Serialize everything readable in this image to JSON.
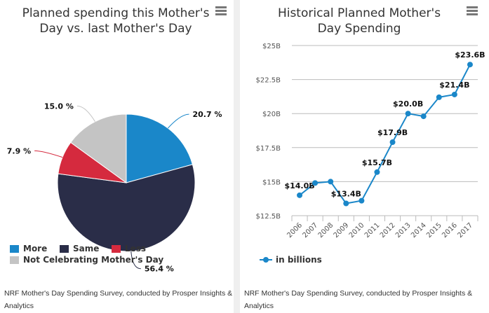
{
  "chart_data": [
    {
      "type": "pie",
      "title": "Planned spending this Mother's Day vs. last Mother's Day",
      "slices": [
        {
          "name": "More",
          "value": 20.7,
          "label": "20.7 %",
          "color": "#1a87c9"
        },
        {
          "name": "Same",
          "value": 56.4,
          "label": "56.4 %",
          "color": "#2a2d48"
        },
        {
          "name": "Less",
          "value": 7.9,
          "label": "7.9 %",
          "color": "#d52a3e"
        },
        {
          "name": "Not Celebrating Mother's Day",
          "value": 15.0,
          "label": "15.0 %",
          "color": "#c4c4c4"
        }
      ],
      "legend_position": "bottom-left",
      "source": "NRF Mother's Day Spending Survey, conducted by Prosper Insights & Analytics"
    },
    {
      "type": "line",
      "title": "Historical Planned Mother's Day Spending",
      "categories": [
        "2006",
        "2007",
        "2008",
        "2009",
        "2010",
        "2011",
        "2012",
        "2013",
        "2014",
        "2015",
        "2016",
        "2017"
      ],
      "series": [
        {
          "name": "in billions",
          "color": "#1a87c9",
          "values": [
            14.0,
            14.9,
            15.0,
            13.4,
            13.6,
            15.7,
            17.9,
            20.0,
            19.8,
            21.2,
            21.4,
            23.6
          ]
        }
      ],
      "data_labels": {
        "0": "$14.0B",
        "3": "$13.4B",
        "5": "$15.7B",
        "6": "$17.9B",
        "7": "$20.0B",
        "10": "$21.4B",
        "11": "$23.6B"
      },
      "ylim": [
        12.5,
        25
      ],
      "yticks": [
        12.5,
        15,
        17.5,
        20,
        22.5,
        25
      ],
      "ytick_labels": [
        "$12.5B",
        "$15B",
        "$17.5B",
        "$20B",
        "$22.5B",
        "$25B"
      ],
      "grid": true,
      "legend_position": "bottom-left",
      "source": "NRF Mother's Day Spending Survey, conducted by Prosper Insights & Analytics"
    }
  ]
}
